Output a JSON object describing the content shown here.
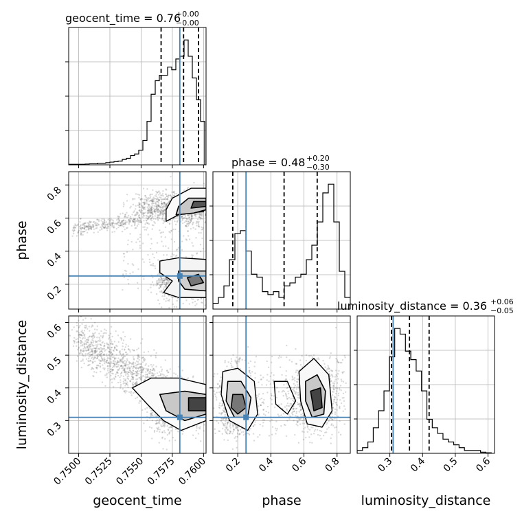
{
  "chart_data": {
    "type": "corner",
    "parameters": [
      {
        "key": "geocent_time",
        "label": "geocent_time",
        "title_value": "0.76",
        "title_plus": "+0.00",
        "title_minus": "−0.00"
      },
      {
        "key": "phase",
        "label": "phase",
        "title_value": "0.48",
        "title_plus": "+0.20",
        "title_minus": "−0.30"
      },
      {
        "key": "luminosity_distance",
        "label": "luminosity_distance",
        "title_value": "0.36",
        "title_plus": "+0.06",
        "title_minus": "−0.05"
      }
    ],
    "ranges": {
      "geocent_time": [
        0.7492,
        0.7602
      ],
      "phase": [
        0.05,
        0.88
      ],
      "luminosity_distance": [
        0.2,
        0.62
      ]
    },
    "ticks": {
      "geocent_time": [
        "0.7500",
        "0.7525",
        "0.7550",
        "0.7575",
        "0.7600"
      ],
      "phase": [
        "0.2",
        "0.4",
        "0.6",
        "0.8"
      ],
      "luminosity_distance": [
        "0.3",
        "0.4",
        "0.5",
        "0.6"
      ]
    },
    "quantiles": {
      "geocent_time": [
        0.7566,
        0.7584,
        0.7596
      ],
      "phase": [
        0.17,
        0.48,
        0.68
      ],
      "luminosity_distance": [
        0.305,
        0.36,
        0.42
      ]
    },
    "truths": {
      "geocent_time": 0.7581,
      "phase": 0.25,
      "luminosity_distance": 0.31
    },
    "truth_color": "#4682b4",
    "histograms": {
      "geocent_time": {
        "edges_start": 0.7492,
        "bin_width": 0.00033,
        "counts": [
          1,
          1,
          1,
          1,
          1.5,
          2,
          2,
          3,
          3,
          4,
          5,
          6,
          7,
          10,
          12,
          17,
          20,
          27,
          45,
          80,
          130,
          155,
          165,
          165,
          180,
          175,
          195,
          200,
          230,
          200,
          160,
          120,
          80
        ]
      },
      "phase": {
        "edges_start": 0.05,
        "bin_width": 0.0332,
        "counts": [
          10,
          20,
          40,
          85,
          130,
          135,
          100,
          60,
          55,
          30,
          25,
          30,
          20,
          40,
          45,
          55,
          60,
          85,
          110,
          150,
          200,
          215,
          150,
          65,
          20
        ]
      },
      "luminosity_distance": {
        "edges_start": 0.2,
        "bin_width": 0.0164,
        "counts": [
          5,
          10,
          20,
          45,
          75,
          110,
          170,
          220,
          210,
          180,
          165,
          145,
          110,
          60,
          45,
          35,
          25,
          20,
          15,
          10,
          5,
          5,
          5,
          2,
          1
        ]
      }
    },
    "grid": true
  }
}
